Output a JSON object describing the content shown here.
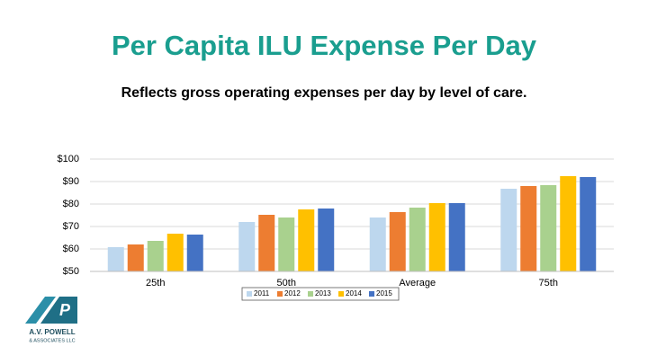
{
  "chart_data": {
    "type": "bar",
    "title": "Per Capita ILU Expense Per Day",
    "subtitle": "Reflects gross operating expenses per day by level of care.",
    "categories": [
      "25th",
      "50th",
      "Average",
      "75th"
    ],
    "series": [
      {
        "name": "2011",
        "color": "#bdd7ee",
        "values": [
          60.8,
          72,
          74,
          86.8
        ]
      },
      {
        "name": "2012",
        "color": "#ed7d31",
        "values": [
          62,
          75.2,
          76.4,
          88
        ]
      },
      {
        "name": "2013",
        "color": "#a9d18e",
        "values": [
          63.6,
          74,
          78.4,
          88.4
        ]
      },
      {
        "name": "2014",
        "color": "#ffc000",
        "values": [
          66.8,
          77.6,
          80.4,
          92.4
        ]
      },
      {
        "name": "2015",
        "color": "#4472c4",
        "values": [
          66.4,
          78,
          80.4,
          92
        ]
      }
    ],
    "ylim": [
      50,
      100
    ],
    "yticks": [
      {
        "value": 50,
        "label": "$50"
      },
      {
        "value": 60,
        "label": "$60"
      },
      {
        "value": 70,
        "label": "$70"
      },
      {
        "value": 80,
        "label": "$80"
      },
      {
        "value": 90,
        "label": "$90"
      },
      {
        "value": 100,
        "label": "$100"
      }
    ],
    "grid": true,
    "legend": "bottom"
  },
  "logo": {
    "name": "A.V. POWELL",
    "sub": "& ASSOCIATES LLC"
  }
}
